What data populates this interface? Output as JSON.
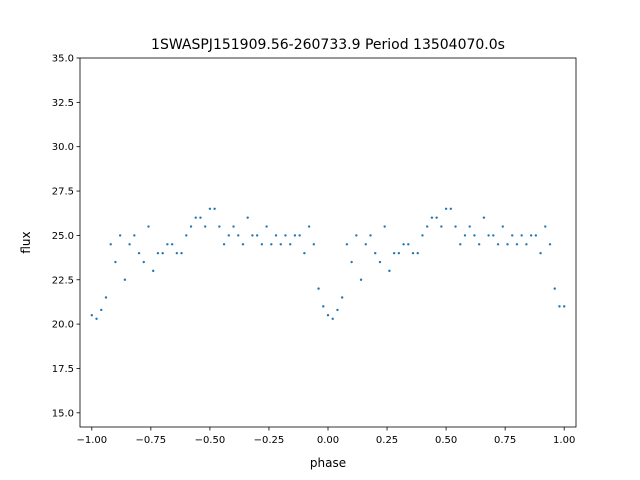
{
  "chart_data": {
    "type": "scatter",
    "title": "1SWASPJ151909.56-260733.9 Period 13504070.0s",
    "xlabel": "phase",
    "ylabel": "flux",
    "xlim": [
      -1.05,
      1.05
    ],
    "ylim": [
      14.2,
      35.0
    ],
    "x_ticks": [
      -1.0,
      -0.75,
      -0.5,
      -0.25,
      0.0,
      0.25,
      0.5,
      0.75,
      1.0
    ],
    "x_tick_labels": [
      "−1.00",
      "−0.75",
      "−0.50",
      "−0.25",
      "0.00",
      "0.25",
      "0.50",
      "0.75",
      "1.00"
    ],
    "y_ticks": [
      15.0,
      17.5,
      20.0,
      22.5,
      25.0,
      27.5,
      30.0,
      32.5,
      35.0
    ],
    "y_tick_labels": [
      "15.0",
      "17.5",
      "20.0",
      "22.5",
      "25.0",
      "27.5",
      "30.0",
      "32.5",
      "35.0"
    ],
    "grid": false,
    "legend": "none",
    "marker_color": "#1f77b4",
    "series": [
      {
        "x": [
          -1.0,
          -0.98,
          -0.96,
          -0.94,
          -0.92,
          -0.9,
          -0.88,
          -0.86,
          -0.84,
          -0.82,
          -0.8,
          -0.78,
          -0.76,
          -0.74,
          -0.72,
          -0.7,
          -0.68,
          -0.66,
          -0.64,
          -0.62,
          -0.6,
          -0.58,
          -0.56,
          -0.54,
          -0.52,
          -0.5,
          -0.48,
          -0.46,
          -0.44,
          -0.42,
          -0.4,
          -0.38,
          -0.36,
          -0.34,
          -0.32,
          -0.3,
          -0.28,
          -0.26,
          -0.24,
          -0.22,
          -0.2,
          -0.18,
          -0.16,
          -0.14,
          -0.12,
          -0.1,
          -0.08,
          -0.06,
          -0.04,
          -0.02,
          0.0,
          0.02,
          0.04,
          0.06,
          0.08,
          0.1,
          0.12,
          0.14,
          0.16,
          0.18,
          0.2,
          0.22,
          0.24,
          0.26,
          0.28,
          0.3,
          0.32,
          0.34,
          0.36,
          0.38,
          0.4,
          0.42,
          0.44,
          0.46,
          0.48,
          0.5,
          0.52,
          0.54,
          0.56,
          0.58,
          0.6,
          0.62,
          0.64,
          0.66,
          0.68,
          0.7,
          0.72,
          0.74,
          0.76,
          0.78,
          0.8,
          0.82,
          0.84,
          0.86,
          0.88,
          0.9,
          0.92,
          0.94,
          0.96,
          0.98,
          1.0
        ],
        "y": [
          20.5,
          20.3,
          20.8,
          21.5,
          24.5,
          23.5,
          25.0,
          22.5,
          24.5,
          25.0,
          24.0,
          23.5,
          25.5,
          23.0,
          24.0,
          24.0,
          24.5,
          24.5,
          24.0,
          24.0,
          25.0,
          25.5,
          26.0,
          26.0,
          25.5,
          26.5,
          26.5,
          25.5,
          24.5,
          25.0,
          25.5,
          25.0,
          24.5,
          26.0,
          25.0,
          25.0,
          24.5,
          25.5,
          24.5,
          25.0,
          24.5,
          25.0,
          24.5,
          25.0,
          25.0,
          24.0,
          25.5,
          24.5,
          22.0,
          21.0,
          20.5,
          20.3,
          20.8,
          21.5,
          24.5,
          23.5,
          25.0,
          22.5,
          24.5,
          25.0,
          24.0,
          23.5,
          25.5,
          23.0,
          24.0,
          24.0,
          24.5,
          24.5,
          24.0,
          24.0,
          25.0,
          25.5,
          26.0,
          26.0,
          25.5,
          26.5,
          26.5,
          25.5,
          24.5,
          25.0,
          25.5,
          25.0,
          24.5,
          26.0,
          25.0,
          25.0,
          24.5,
          25.5,
          24.5,
          25.0,
          24.5,
          25.0,
          24.5,
          25.0,
          25.0,
          24.0,
          25.5,
          24.5,
          22.0,
          21.0,
          21.0
        ]
      }
    ]
  }
}
